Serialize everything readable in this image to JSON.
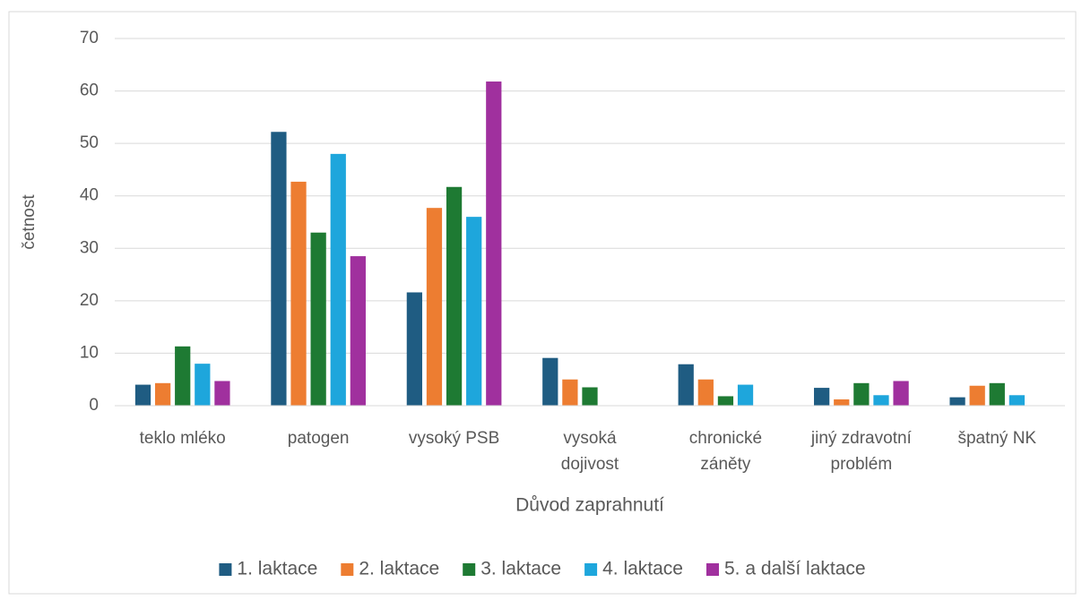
{
  "chart_data": {
    "type": "bar",
    "x_label": "Důvod zaprahnutí",
    "y_label": "četnost",
    "categories": [
      "teklo mléko",
      "patogen",
      "vysoký PSB",
      "vysoká dojivost",
      "chronické záněty",
      "jiný zdravotní problém",
      "špatný NK"
    ],
    "series": [
      {
        "name": "1. laktace",
        "color": "#1f5c82",
        "values": [
          4,
          52.2,
          21.6,
          9.1,
          7.9,
          3.4,
          1.6
        ]
      },
      {
        "name": "2. laktace",
        "color": "#ed7d31",
        "values": [
          4.3,
          42.7,
          37.7,
          5,
          5,
          1.2,
          3.8
        ]
      },
      {
        "name": "3. laktace",
        "color": "#1e7a33",
        "values": [
          11.3,
          33,
          41.7,
          3.5,
          1.8,
          4.3,
          4.3
        ]
      },
      {
        "name": "4. laktace",
        "color": "#1ea6dc",
        "values": [
          8,
          48,
          36,
          0,
          4,
          2,
          2
        ]
      },
      {
        "name": "5. a další laktace",
        "color": "#a0309e",
        "values": [
          4.7,
          28.5,
          61.8,
          0,
          0,
          4.7,
          0
        ]
      }
    ],
    "ylim": [
      0,
      70
    ],
    "yticks": [
      0,
      10,
      20,
      30,
      40,
      50,
      60,
      70
    ],
    "grid": true,
    "legend": "bottom"
  }
}
